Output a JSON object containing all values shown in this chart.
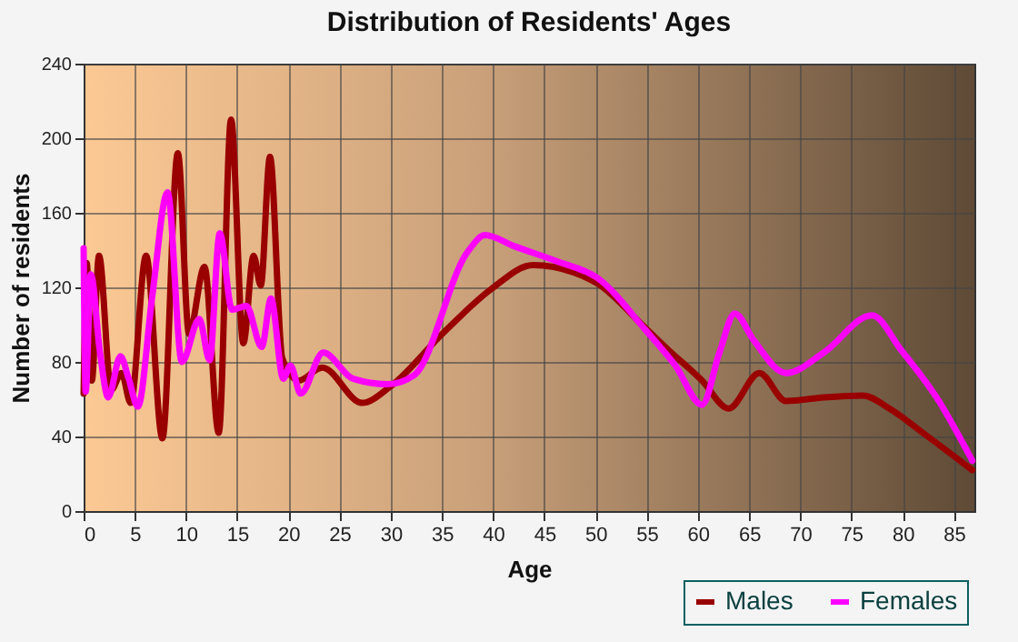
{
  "chart_data": {
    "type": "line",
    "title": "Distribution of Residents' Ages",
    "xlabel": "Age",
    "ylabel": "Number of residents",
    "xlim": [
      0,
      87
    ],
    "xticks": [
      0,
      5,
      10,
      15,
      20,
      25,
      30,
      35,
      40,
      45,
      50,
      55,
      60,
      65,
      70,
      75,
      80,
      85
    ],
    "ylim": [
      0,
      240
    ],
    "yticks": [
      0,
      40,
      80,
      120,
      160,
      200,
      240
    ],
    "grid": true,
    "legend": "bottom right",
    "marker": "none",
    "line_style": "solid",
    "series": [
      {
        "name": "Males",
        "color": "#990000",
        "x": [
          0,
          0.3,
          0.8,
          1.5,
          2.7,
          3.7,
          4.6,
          6.1,
          7.7,
          9.2,
          10.3,
          11.8,
          13.2,
          14.4,
          15.6,
          16.6,
          17.3,
          18.2,
          19.4,
          21,
          23.3,
          27.2,
          30,
          35.2,
          39.8,
          43.9,
          47.9,
          50.2,
          54.9,
          57.2,
          60.4,
          63,
          66,
          68.6,
          72.3,
          76.1,
          78.7,
          82.2,
          86.8
        ],
        "values": [
          63,
          133,
          70,
          137,
          65,
          74,
          58,
          137,
          39,
          192,
          95,
          131,
          42,
          210,
          90,
          137,
          121,
          190,
          82,
          70,
          77,
          58,
          67,
          96,
          119,
          132,
          128,
          122,
          98,
          86,
          70,
          55,
          74,
          59,
          61,
          62,
          55,
          41,
          22
        ]
      },
      {
        "name": "Females",
        "color": "#ff00ff",
        "x": [
          0,
          0.2,
          0.7,
          1.6,
          2.4,
          3.6,
          4.4,
          5.3,
          6.7,
          8.2,
          9.6,
          11.3,
          12.3,
          13.3,
          14.5,
          15.9,
          17.4,
          18.3,
          19.5,
          20.2,
          21.2,
          23.4,
          26.3,
          29.7,
          32.3,
          37.5,
          39.2,
          42.1,
          46.2,
          50.2,
          54.9,
          57.8,
          60.4,
          62.1,
          63.6,
          65.4,
          68.6,
          72.3,
          77,
          79.9,
          83.3,
          86.8
        ],
        "values": [
          141,
          64,
          127,
          85,
          61,
          83,
          71,
          56,
          115,
          171,
          80,
          103,
          81,
          149,
          108,
          110,
          88,
          114,
          71,
          78,
          63,
          85,
          71,
          68,
          73,
          139,
          148,
          142,
          134,
          125,
          97,
          78,
          57,
          85,
          106,
          92,
          74,
          85,
          105,
          86,
          61,
          27
        ]
      }
    ]
  }
}
